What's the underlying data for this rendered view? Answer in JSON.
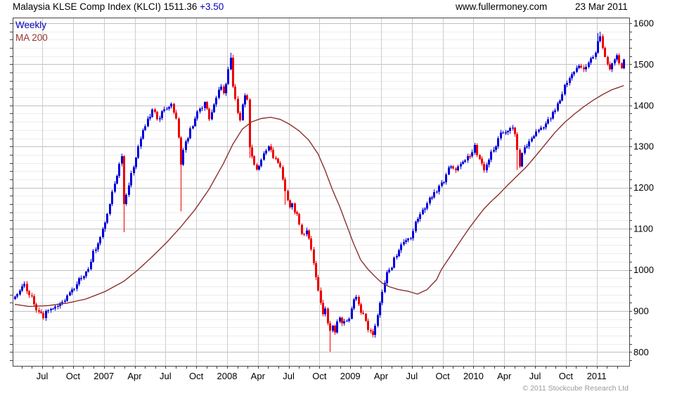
{
  "header": {
    "title": "Malaysia KLSE Comp Index (KLCI) 1511.36",
    "change": "+3.50",
    "website": "www.fullermoney.com",
    "date": "23 Mar 2011"
  },
  "legend": {
    "weekly_label": "Weekly",
    "ma_label": "MA 200"
  },
  "footer": {
    "copyright": "© 2011 Stockcube Research Ltd"
  },
  "colors": {
    "accent_blue": "#0000bb",
    "legend_red": "#993333",
    "grid_major": "#c0c0c0",
    "grid_minor": "#ededed",
    "grid_vertical": "#cccccc",
    "frame": "#444444",
    "tick": "#444444",
    "copyright_gray": "#9a9a9a"
  },
  "chart_data": {
    "type": "candlestick",
    "title": "Malaysia KLSE Comp Index (KLCI)",
    "timeframe": "Weekly",
    "overlay": "MA 200",
    "last_price": 1511.36,
    "change": 3.5,
    "date": "23 Mar 2011",
    "legend_position": "top-left",
    "grid": true,
    "y_axis": {
      "side": "right",
      "min": 800,
      "max": 1600,
      "major_step": 100,
      "minor_step": 20
    },
    "y_tick_labels": [
      1600,
      1500,
      1400,
      1300,
      1200,
      1100,
      1000,
      900,
      800
    ],
    "x_tick_labels": [
      "Jul",
      "Oct",
      "2007",
      "Apr",
      "Jul",
      "Oct",
      "2008",
      "Apr",
      "Jul",
      "Oct",
      "2009",
      "Apr",
      "Jul",
      "Oct",
      "2010",
      "Apr",
      "Jul",
      "Oct",
      "2011"
    ],
    "x_range": [
      "Apr 2006",
      "Mar 2011"
    ],
    "up_color": "#0000dd",
    "down_color": "#ee0000",
    "ma_color": "#8b2f2f",
    "weeks": 258,
    "close_anchors": [
      [
        0,
        935
      ],
      [
        2,
        950
      ],
      [
        4,
        966
      ],
      [
        6,
        938
      ],
      [
        8,
        916
      ],
      [
        10,
        898
      ],
      [
        12,
        883
      ],
      [
        14,
        902
      ],
      [
        16,
        906
      ],
      [
        18,
        912
      ],
      [
        20,
        922
      ],
      [
        22,
        938
      ],
      [
        24,
        952
      ],
      [
        26,
        965
      ],
      [
        28,
        980
      ],
      [
        30,
        996
      ],
      [
        32,
        1020
      ],
      [
        34,
        1050
      ],
      [
        36,
        1080
      ],
      [
        38,
        1115
      ],
      [
        40,
        1160
      ],
      [
        42,
        1210
      ],
      [
        44,
        1258
      ],
      [
        45,
        1276
      ],
      [
        46,
        1160
      ],
      [
        47,
        1182
      ],
      [
        48,
        1205
      ],
      [
        50,
        1250
      ],
      [
        52,
        1300
      ],
      [
        54,
        1340
      ],
      [
        56,
        1368
      ],
      [
        58,
        1390
      ],
      [
        60,
        1366
      ],
      [
        62,
        1386
      ],
      [
        64,
        1392
      ],
      [
        66,
        1404
      ],
      [
        68,
        1368
      ],
      [
        69,
        1322
      ],
      [
        70,
        1256
      ],
      [
        71,
        1292
      ],
      [
        72,
        1312
      ],
      [
        74,
        1344
      ],
      [
        76,
        1368
      ],
      [
        78,
        1392
      ],
      [
        80,
        1408
      ],
      [
        81,
        1392
      ],
      [
        82,
        1366
      ],
      [
        84,
        1402
      ],
      [
        86,
        1438
      ],
      [
        87,
        1446
      ],
      [
        88,
        1430
      ],
      [
        89,
        1452
      ],
      [
        90,
        1488
      ],
      [
        91,
        1516
      ],
      [
        92,
        1446
      ],
      [
        93,
        1416
      ],
      [
        94,
        1382
      ],
      [
        95,
        1364
      ],
      [
        96,
        1402
      ],
      [
        97,
        1424
      ],
      [
        98,
        1414
      ],
      [
        99,
        1298
      ],
      [
        100,
        1276
      ],
      [
        101,
        1256
      ],
      [
        102,
        1244
      ],
      [
        104,
        1268
      ],
      [
        106,
        1290
      ],
      [
        107,
        1300
      ],
      [
        108,
        1292
      ],
      [
        110,
        1270
      ],
      [
        112,
        1250
      ],
      [
        114,
        1192
      ],
      [
        116,
        1152
      ],
      [
        117,
        1162
      ],
      [
        118,
        1140
      ],
      [
        120,
        1110
      ],
      [
        122,
        1086
      ],
      [
        123,
        1096
      ],
      [
        124,
        1076
      ],
      [
        125,
        1050
      ],
      [
        126,
        1016
      ],
      [
        127,
        982
      ],
      [
        128,
        950
      ],
      [
        129,
        920
      ],
      [
        130,
        892
      ],
      [
        131,
        906
      ],
      [
        132,
        870
      ],
      [
        133,
        852
      ],
      [
        134,
        864
      ],
      [
        135,
        848
      ],
      [
        136,
        874
      ],
      [
        137,
        884
      ],
      [
        138,
        870
      ],
      [
        140,
        876
      ],
      [
        142,
        906
      ],
      [
        144,
        934
      ],
      [
        145,
        916
      ],
      [
        146,
        896
      ],
      [
        148,
        876
      ],
      [
        150,
        850
      ],
      [
        151,
        842
      ],
      [
        152,
        864
      ],
      [
        153,
        890
      ],
      [
        154,
        920
      ],
      [
        155,
        946
      ],
      [
        156,
        968
      ],
      [
        158,
        1000
      ],
      [
        160,
        1030
      ],
      [
        162,
        1048
      ],
      [
        164,
        1068
      ],
      [
        166,
        1076
      ],
      [
        168,
        1094
      ],
      [
        170,
        1124
      ],
      [
        172,
        1146
      ],
      [
        174,
        1162
      ],
      [
        176,
        1176
      ],
      [
        178,
        1190
      ],
      [
        180,
        1212
      ],
      [
        182,
        1232
      ],
      [
        184,
        1252
      ],
      [
        186,
        1242
      ],
      [
        188,
        1258
      ],
      [
        190,
        1266
      ],
      [
        192,
        1276
      ],
      [
        194,
        1304
      ],
      [
        196,
        1270
      ],
      [
        198,
        1242
      ],
      [
        200,
        1268
      ],
      [
        202,
        1292
      ],
      [
        204,
        1320
      ],
      [
        206,
        1334
      ],
      [
        208,
        1338
      ],
      [
        210,
        1346
      ],
      [
        211,
        1330
      ],
      [
        212,
        1292
      ],
      [
        213,
        1252
      ],
      [
        214,
        1284
      ],
      [
        216,
        1300
      ],
      [
        218,
        1320
      ],
      [
        220,
        1336
      ],
      [
        222,
        1346
      ],
      [
        224,
        1356
      ],
      [
        226,
        1368
      ],
      [
        228,
        1388
      ],
      [
        230,
        1412
      ],
      [
        232,
        1450
      ],
      [
        234,
        1466
      ],
      [
        236,
        1482
      ],
      [
        238,
        1496
      ],
      [
        240,
        1488
      ],
      [
        242,
        1504
      ],
      [
        244,
        1518
      ],
      [
        245,
        1528
      ],
      [
        246,
        1556
      ],
      [
        247,
        1568
      ],
      [
        248,
        1540
      ],
      [
        249,
        1518
      ],
      [
        250,
        1500
      ],
      [
        251,
        1488
      ],
      [
        252,
        1502
      ],
      [
        253,
        1512
      ],
      [
        254,
        1522
      ],
      [
        255,
        1502
      ],
      [
        256,
        1490
      ],
      [
        257,
        1511.36
      ]
    ],
    "wick_events": [
      [
        46,
        "low",
        1092
      ],
      [
        70,
        "low",
        1142
      ],
      [
        91,
        "high",
        1528
      ],
      [
        99,
        "low",
        1272
      ],
      [
        114,
        "low",
        1158
      ],
      [
        133,
        "low",
        801
      ],
      [
        151,
        "low",
        836
      ],
      [
        212,
        "low",
        1243
      ],
      [
        246,
        "high",
        1576
      ],
      [
        247,
        "high",
        1579
      ]
    ],
    "ma_anchors": [
      [
        0,
        916
      ],
      [
        6,
        911
      ],
      [
        14,
        913
      ],
      [
        22,
        919
      ],
      [
        30,
        929
      ],
      [
        38,
        947
      ],
      [
        46,
        972
      ],
      [
        52,
        1000
      ],
      [
        58,
        1032
      ],
      [
        64,
        1066
      ],
      [
        70,
        1104
      ],
      [
        76,
        1146
      ],
      [
        82,
        1196
      ],
      [
        88,
        1258
      ],
      [
        92,
        1305
      ],
      [
        96,
        1342
      ],
      [
        100,
        1360
      ],
      [
        104,
        1368
      ],
      [
        108,
        1371
      ],
      [
        112,
        1366
      ],
      [
        116,
        1354
      ],
      [
        120,
        1338
      ],
      [
        124,
        1316
      ],
      [
        128,
        1282
      ],
      [
        131,
        1242
      ],
      [
        134,
        1196
      ],
      [
        137,
        1156
      ],
      [
        140,
        1110
      ],
      [
        143,
        1064
      ],
      [
        146,
        1024
      ],
      [
        149,
        1002
      ],
      [
        152,
        984
      ],
      [
        155,
        968
      ],
      [
        158,
        959
      ],
      [
        162,
        952
      ],
      [
        166,
        948
      ],
      [
        170,
        941
      ],
      [
        174,
        952
      ],
      [
        178,
        976
      ],
      [
        180,
        1000
      ],
      [
        183,
        1026
      ],
      [
        186,
        1052
      ],
      [
        189,
        1078
      ],
      [
        192,
        1103
      ],
      [
        195,
        1126
      ],
      [
        198,
        1148
      ],
      [
        201,
        1166
      ],
      [
        204,
        1182
      ],
      [
        207,
        1200
      ],
      [
        210,
        1217
      ],
      [
        213,
        1234
      ],
      [
        216,
        1251
      ],
      [
        220,
        1278
      ],
      [
        224,
        1306
      ],
      [
        228,
        1334
      ],
      [
        232,
        1358
      ],
      [
        236,
        1378
      ],
      [
        240,
        1396
      ],
      [
        244,
        1412
      ],
      [
        248,
        1426
      ],
      [
        252,
        1438
      ],
      [
        257,
        1448
      ]
    ]
  }
}
